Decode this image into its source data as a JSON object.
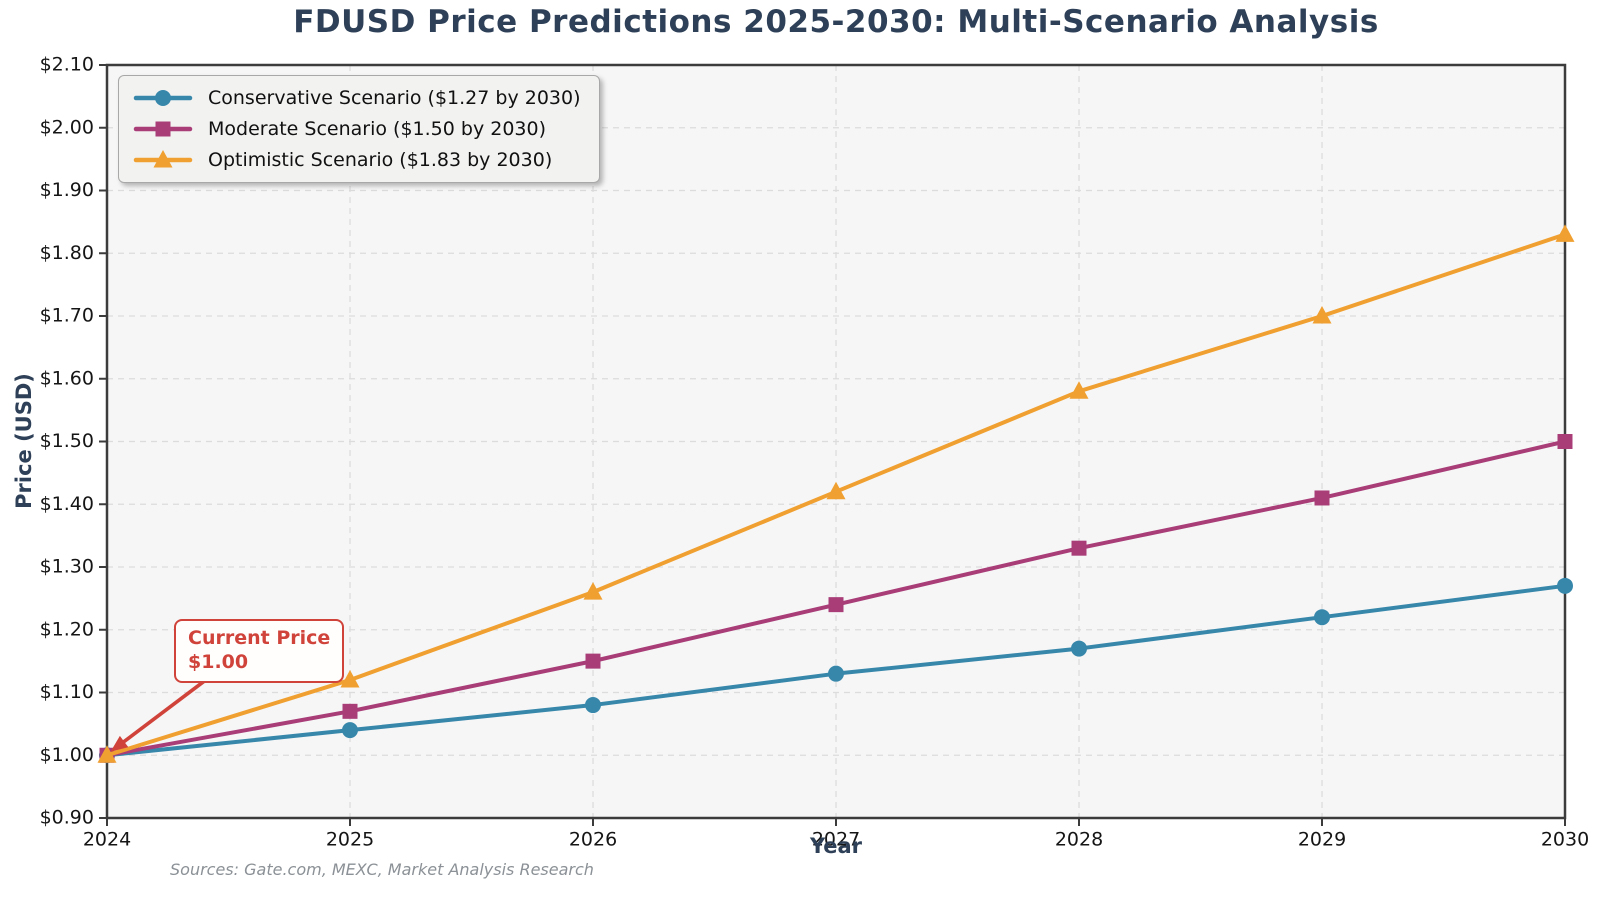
{
  "chart": {
    "title": "FDUSD Price Predictions 2025-2030: Multi-Scenario Analysis",
    "xlabel": "Year",
    "ylabel": "Price (USD)",
    "source": "Sources: Gate.com, MEXC, Market Analysis Research",
    "annotation": {
      "line1": "Current Price",
      "line2": "$1.00",
      "target_year": 2024,
      "target_value": 1.0,
      "color": "#d0433b"
    },
    "colors": {
      "title_text": "#2e4057",
      "axis_label_text": "#2e4057",
      "tick_text": "#151515",
      "plot_background": "#f6f6f6",
      "grid": "#dcdcdc",
      "spine": "#3c3c3c",
      "legend_background": "#f2f2f1",
      "source_text": "#8b9196"
    }
  },
  "chart_data": {
    "type": "line",
    "title": "FDUSD Price Predictions 2025-2030: Multi-Scenario Analysis",
    "xlabel": "Year",
    "ylabel": "Price (USD)",
    "x": [
      2024,
      2025,
      2026,
      2027,
      2028,
      2029,
      2030
    ],
    "series": [
      {
        "name": "Conservative Scenario ($1.27 by 2030)",
        "values": [
          1.0,
          1.04,
          1.08,
          1.13,
          1.17,
          1.22,
          1.27
        ],
        "color": "#3787ab",
        "marker": "circle"
      },
      {
        "name": "Moderate Scenario ($1.50 by 2030)",
        "values": [
          1.0,
          1.07,
          1.15,
          1.24,
          1.33,
          1.41,
          1.5
        ],
        "color": "#a83d78",
        "marker": "square"
      },
      {
        "name": "Optimistic Scenario ($1.83 by 2030)",
        "values": [
          1.0,
          1.12,
          1.26,
          1.42,
          1.58,
          1.7,
          1.83
        ],
        "color": "#f0a030",
        "marker": "triangle"
      }
    ],
    "xlim": [
      2024,
      2030
    ],
    "ylim": [
      0.9,
      2.1
    ],
    "ytick_step": 0.1,
    "ytick_prefix": "$",
    "grid": true,
    "grid_style": "dashed",
    "legend_position": "upper left"
  }
}
